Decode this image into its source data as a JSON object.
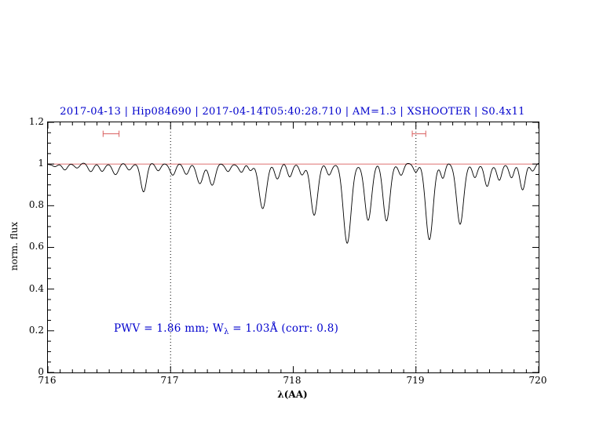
{
  "title": "2017-04-13 | Hip084690 | 2017-04-14T05:40:28.710 | AM=1.3 | XSHOOTER | S0.4x11",
  "annotation": {
    "prefix": "PWV = 1.86 mm; W",
    "sub": "λ",
    "suffix": " = 1.03Å (corr: 0.8)"
  },
  "colors": {
    "title_text": "#0000cd",
    "annotation_text": "#0000cd",
    "continuum_line": "#d95f5f",
    "range_marker": "#d95f5f",
    "spectrum_line": "#000000",
    "dotted_guide": "#000000"
  },
  "chart_data": {
    "type": "line",
    "title": "2017-04-13 | Hip084690 | 2017-04-14T05:40:28.710 | AM=1.3 | XSHOOTER | S0.4x11",
    "xlabel": "λ(AA)",
    "ylabel": "norm. flux",
    "xlim": [
      716,
      720
    ],
    "ylim": [
      0,
      1.2
    ],
    "xticks": [
      716,
      717,
      718,
      719,
      720
    ],
    "xtick_labels": [
      "716",
      "717",
      "718",
      "719",
      "720"
    ],
    "yticks": [
      0,
      0.2,
      0.4,
      0.6,
      0.8,
      1,
      1.2
    ],
    "ytick_labels": [
      "0",
      "0.2",
      "0.4",
      "0.6",
      "0.8",
      "1",
      "1.2"
    ],
    "x_minor_step": 0.1,
    "y_minor_step": 0.05,
    "grid": "off",
    "dotted_vlines": [
      717,
      719
    ],
    "continuum_level": 1.0,
    "range_markers": [
      {
        "x1": 716.45,
        "x2": 716.58,
        "y": 1.145
      },
      {
        "x1": 718.97,
        "x2": 719.08,
        "y": 1.145
      }
    ],
    "series_description": "Telluric absorption spectrum, normalized flux vs wavelength; continuum at 1.0 with absorption lines modeled as Gaussians (center c in Å, depth d, sigma w in Å).",
    "absorption_lines": [
      {
        "c": 716.06,
        "d": 0.018,
        "w": 0.02
      },
      {
        "c": 716.14,
        "d": 0.025,
        "w": 0.02
      },
      {
        "c": 716.24,
        "d": 0.015,
        "w": 0.02
      },
      {
        "c": 716.35,
        "d": 0.035,
        "w": 0.022
      },
      {
        "c": 716.44,
        "d": 0.03,
        "w": 0.02
      },
      {
        "c": 716.55,
        "d": 0.05,
        "w": 0.025
      },
      {
        "c": 716.66,
        "d": 0.025,
        "w": 0.02
      },
      {
        "c": 716.78,
        "d": 0.13,
        "w": 0.024
      },
      {
        "c": 716.9,
        "d": 0.03,
        "w": 0.02
      },
      {
        "c": 717.02,
        "d": 0.05,
        "w": 0.022
      },
      {
        "c": 717.13,
        "d": 0.05,
        "w": 0.022
      },
      {
        "c": 717.24,
        "d": 0.09,
        "w": 0.026
      },
      {
        "c": 717.34,
        "d": 0.1,
        "w": 0.026
      },
      {
        "c": 717.47,
        "d": 0.035,
        "w": 0.02
      },
      {
        "c": 717.58,
        "d": 0.04,
        "w": 0.02
      },
      {
        "c": 717.65,
        "d": 0.03,
        "w": 0.018
      },
      {
        "c": 717.75,
        "d": 0.21,
        "w": 0.03
      },
      {
        "c": 717.87,
        "d": 0.07,
        "w": 0.022
      },
      {
        "c": 717.97,
        "d": 0.06,
        "w": 0.02
      },
      {
        "c": 718.07,
        "d": 0.05,
        "w": 0.02
      },
      {
        "c": 718.17,
        "d": 0.25,
        "w": 0.028
      },
      {
        "c": 718.29,
        "d": 0.05,
        "w": 0.02
      },
      {
        "c": 718.44,
        "d": 0.38,
        "w": 0.032
      },
      {
        "c": 718.61,
        "d": 0.27,
        "w": 0.028
      },
      {
        "c": 718.76,
        "d": 0.27,
        "w": 0.028
      },
      {
        "c": 718.88,
        "d": 0.05,
        "w": 0.02
      },
      {
        "c": 719.0,
        "d": 0.04,
        "w": 0.018
      },
      {
        "c": 719.11,
        "d": 0.36,
        "w": 0.03
      },
      {
        "c": 719.22,
        "d": 0.07,
        "w": 0.018
      },
      {
        "c": 719.36,
        "d": 0.29,
        "w": 0.028
      },
      {
        "c": 719.48,
        "d": 0.07,
        "w": 0.02
      },
      {
        "c": 719.58,
        "d": 0.11,
        "w": 0.022
      },
      {
        "c": 719.68,
        "d": 0.08,
        "w": 0.02
      },
      {
        "c": 719.78,
        "d": 0.07,
        "w": 0.02
      },
      {
        "c": 719.87,
        "d": 0.12,
        "w": 0.022
      },
      {
        "c": 719.95,
        "d": 0.03,
        "w": 0.018
      }
    ]
  }
}
